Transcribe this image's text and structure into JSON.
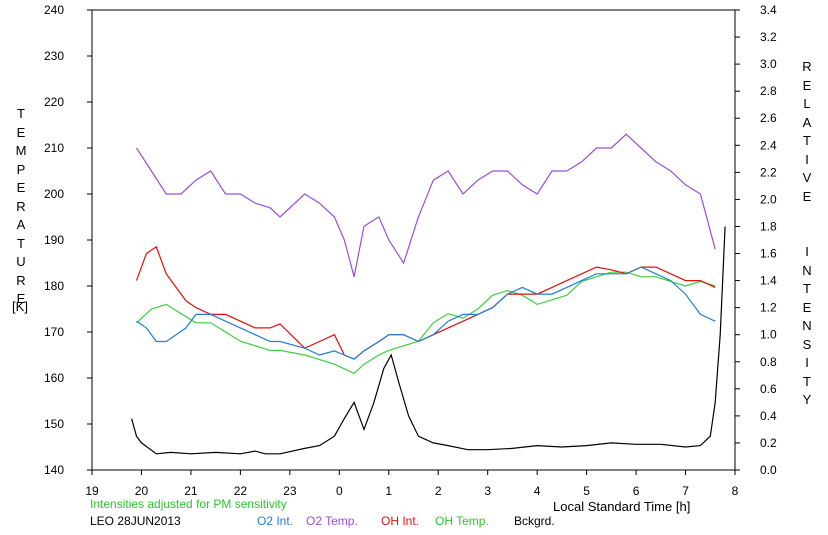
{
  "chart_data": {
    "type": "line",
    "title": "",
    "xlabel": "Local Standard Time [h]",
    "ylabel_left": "TEMPERATURE",
    "ylabel_left_unit": "[K]",
    "ylabel_right": "RELATIVE INTENSITY",
    "x_ticks": [
      "19",
      "20",
      "21",
      "22",
      "23",
      "0",
      "1",
      "2",
      "3",
      "4",
      "5",
      "6",
      "7",
      "8"
    ],
    "xlim": [
      19,
      32
    ],
    "y_left_ticks": [
      "140",
      "150",
      "160",
      "170",
      "180",
      "190",
      "200",
      "210",
      "220",
      "230",
      "240"
    ],
    "ylim_left": [
      140,
      240
    ],
    "y_right_ticks": [
      "0.0",
      "0.2",
      "0.4",
      "0.6",
      "0.8",
      "1.0",
      "1.2",
      "1.4",
      "1.6",
      "1.8",
      "2.0",
      "2.2",
      "2.4",
      "2.6",
      "2.8",
      "3.0",
      "3.2",
      "3.4"
    ],
    "ylim_right": [
      0,
      3.4
    ],
    "grid": false,
    "note": "Intensities adjusted for PM sensitivity",
    "station": "LEO 28JUN2013",
    "legend": [
      {
        "label": "O2 Int.",
        "color": "#1f7fd6"
      },
      {
        "label": "O2 Temp.",
        "color": "#9a4fd8"
      },
      {
        "label": "OH Int.",
        "color": "#e01010"
      },
      {
        "label": "OH Temp.",
        "color": "#3ccf3c"
      },
      {
        "label": "Bckgrd.",
        "color": "#000000"
      }
    ],
    "series": [
      {
        "name": "O2 Temp.",
        "axis": "left",
        "color": "#9a4fd8",
        "x": [
          19.9,
          20.2,
          20.5,
          20.8,
          21.1,
          21.4,
          21.7,
          22.0,
          22.3,
          22.6,
          22.8,
          23.3,
          23.6,
          23.9,
          24.1,
          24.3,
          24.5,
          24.8,
          25.0,
          25.3,
          25.6,
          25.9,
          26.2,
          26.5,
          26.8,
          27.1,
          27.4,
          27.7,
          28.0,
          28.3,
          28.6,
          28.9,
          29.2,
          29.5,
          29.8,
          30.1,
          30.4,
          30.7,
          31.0,
          31.3,
          31.6
        ],
        "y": [
          210,
          205,
          200,
          200,
          203,
          205,
          200,
          200,
          198,
          197,
          195,
          200,
          198,
          195,
          190,
          182,
          193,
          195,
          190,
          185,
          195,
          203,
          205,
          200,
          203,
          205,
          205,
          202,
          200,
          205,
          205,
          207,
          210,
          210,
          213,
          210,
          207,
          205,
          202,
          200,
          188
        ]
      },
      {
        "name": "OH Temp.",
        "axis": "left",
        "color": "#3ccf3c",
        "x": [
          19.9,
          20.2,
          20.5,
          20.8,
          21.1,
          21.4,
          21.7,
          22.0,
          22.3,
          22.6,
          22.8,
          23.3,
          23.6,
          23.9,
          24.1,
          24.3,
          24.5,
          24.8,
          25.0,
          25.3,
          25.6,
          25.9,
          26.2,
          26.5,
          26.8,
          27.1,
          27.4,
          27.7,
          28.0,
          28.3,
          28.6,
          28.9,
          29.2,
          29.5,
          29.8,
          30.1,
          30.4,
          30.7,
          31.0,
          31.3,
          31.6
        ],
        "y": [
          172,
          175,
          176,
          174,
          172,
          172,
          170,
          168,
          167,
          166,
          166,
          165,
          164,
          163,
          162,
          161,
          163,
          165,
          166,
          167,
          168,
          172,
          174,
          173,
          175,
          178,
          179,
          178,
          176,
          177,
          178,
          181,
          182,
          183,
          183,
          182,
          182,
          181,
          180,
          181,
          180
        ]
      },
      {
        "name": "OH Int.",
        "axis": "right",
        "color": "#e01010",
        "x": [
          19.9,
          20.1,
          20.3,
          20.5,
          20.7,
          20.9,
          21.1,
          21.4,
          21.7,
          22.0,
          22.3,
          22.6,
          22.8,
          23.3,
          23.6,
          23.9,
          24.1,
          24.3,
          24.5,
          24.8,
          25.0,
          25.3,
          25.6,
          25.9,
          26.2,
          26.5,
          26.8,
          27.1,
          27.4,
          27.7,
          28.0,
          28.3,
          28.6,
          28.9,
          29.2,
          29.5,
          29.8,
          30.1,
          30.4,
          30.7,
          31.0,
          31.3,
          31.6
        ],
        "y": [
          1.4,
          1.6,
          1.65,
          1.45,
          1.35,
          1.25,
          1.2,
          1.15,
          1.15,
          1.1,
          1.05,
          1.05,
          1.08,
          0.9,
          0.95,
          1.0,
          0.85,
          0.82,
          0.88,
          0.95,
          1.0,
          1.0,
          0.95,
          1.0,
          1.05,
          1.1,
          1.15,
          1.2,
          1.3,
          1.3,
          1.3,
          1.35,
          1.4,
          1.45,
          1.5,
          1.48,
          1.45,
          1.5,
          1.5,
          1.45,
          1.4,
          1.4,
          1.35
        ]
      },
      {
        "name": "O2 Int.",
        "axis": "right",
        "color": "#1f7fd6",
        "x": [
          19.9,
          20.1,
          20.3,
          20.5,
          20.7,
          20.9,
          21.1,
          21.4,
          21.7,
          22.0,
          22.3,
          22.6,
          22.8,
          23.3,
          23.6,
          23.9,
          24.1,
          24.3,
          24.5,
          24.8,
          25.0,
          25.3,
          25.6,
          25.9,
          26.2,
          26.5,
          26.8,
          27.1,
          27.4,
          27.7,
          28.0,
          28.3,
          28.6,
          28.9,
          29.2,
          29.5,
          29.8,
          30.1,
          30.4,
          30.7,
          31.0,
          31.3,
          31.6
        ],
        "y": [
          1.1,
          1.05,
          0.95,
          0.95,
          1.0,
          1.05,
          1.15,
          1.15,
          1.1,
          1.05,
          1.0,
          0.95,
          0.95,
          0.9,
          0.85,
          0.88,
          0.85,
          0.82,
          0.88,
          0.95,
          1.0,
          1.0,
          0.95,
          1.0,
          1.1,
          1.15,
          1.15,
          1.2,
          1.3,
          1.35,
          1.3,
          1.3,
          1.35,
          1.4,
          1.45,
          1.45,
          1.45,
          1.5,
          1.45,
          1.4,
          1.3,
          1.15,
          1.1
        ]
      },
      {
        "name": "Bckgrd.",
        "axis": "right",
        "color": "#000000",
        "x": [
          19.8,
          19.9,
          20.0,
          20.3,
          20.6,
          21.0,
          21.5,
          22.0,
          22.3,
          22.5,
          22.8,
          23.3,
          23.6,
          23.9,
          24.1,
          24.3,
          24.5,
          24.7,
          24.9,
          25.05,
          25.2,
          25.4,
          25.6,
          25.9,
          26.2,
          26.6,
          27.0,
          27.5,
          28.0,
          28.5,
          29.0,
          29.5,
          30.0,
          30.5,
          31.0,
          31.3,
          31.5,
          31.6,
          31.7,
          31.8
        ],
        "y": [
          0.38,
          0.25,
          0.2,
          0.12,
          0.13,
          0.12,
          0.13,
          0.12,
          0.14,
          0.12,
          0.12,
          0.16,
          0.18,
          0.25,
          0.38,
          0.5,
          0.3,
          0.5,
          0.75,
          0.85,
          0.65,
          0.4,
          0.25,
          0.2,
          0.18,
          0.15,
          0.15,
          0.16,
          0.18,
          0.17,
          0.18,
          0.2,
          0.19,
          0.19,
          0.17,
          0.18,
          0.25,
          0.5,
          1.0,
          1.8
        ]
      }
    ]
  }
}
